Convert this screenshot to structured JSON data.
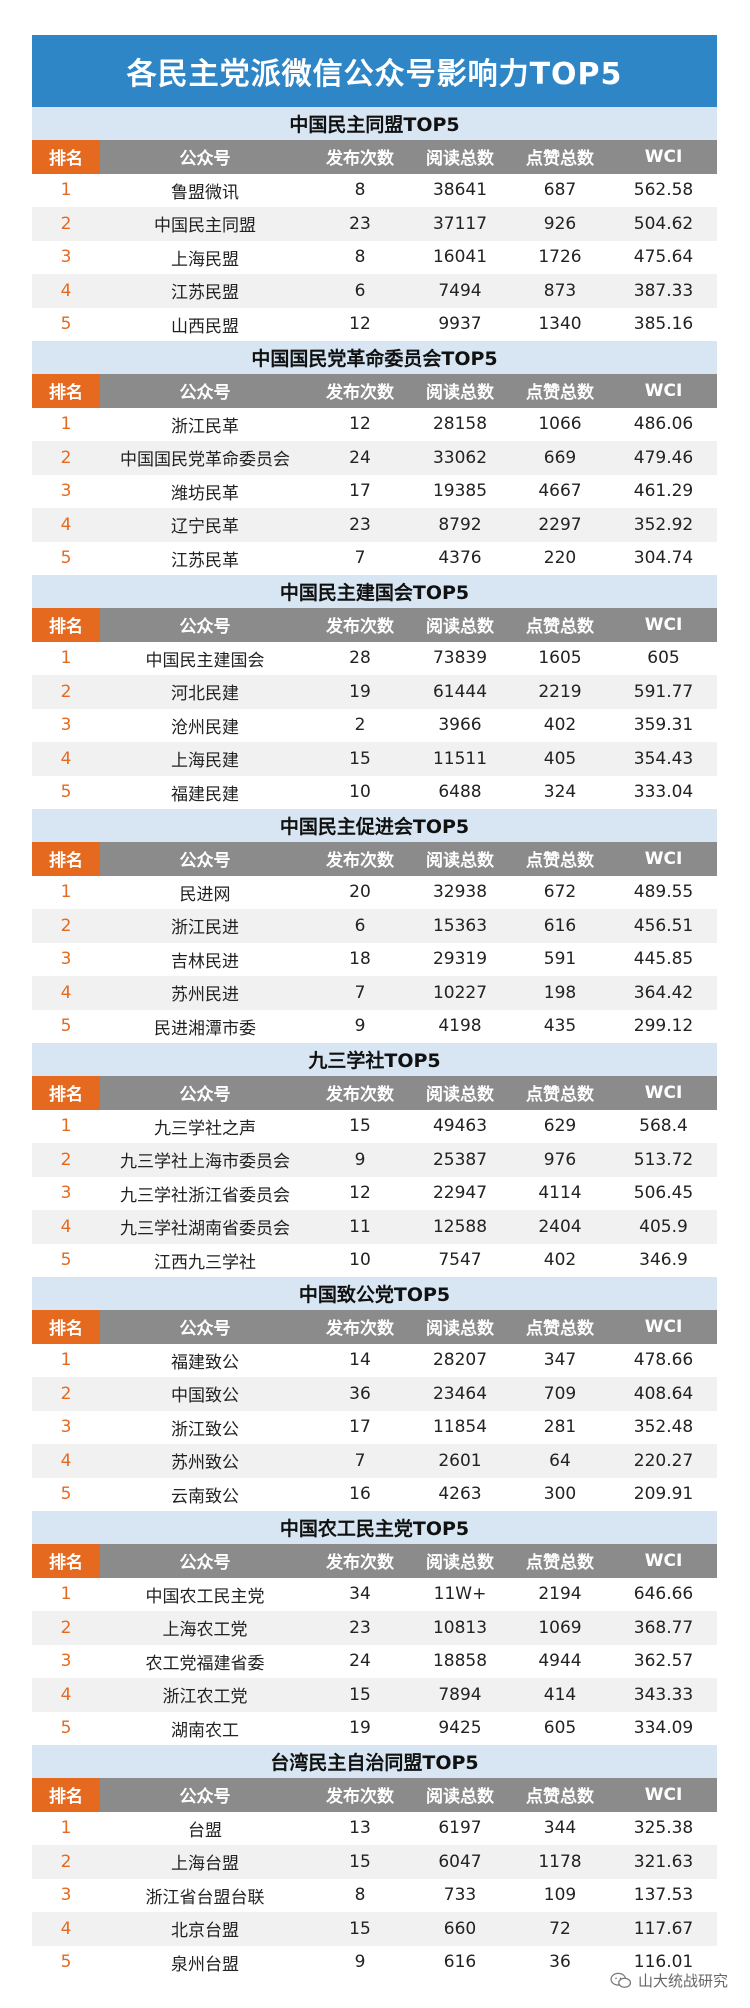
{
  "title": "各民主党派微信公众号影响力TOP5",
  "header": {
    "rank": "排名",
    "account": "公众号",
    "posts": "发布次数",
    "reads": "阅读总数",
    "likes": "点赞总数",
    "wci": "WCI"
  },
  "sections": [
    {
      "title": "中国民主同盟TOP5",
      "rows": [
        [
          "1",
          "鲁盟微讯",
          "8",
          "38641",
          "687",
          "562.58"
        ],
        [
          "2",
          "中国民主同盟",
          "23",
          "37117",
          "926",
          "504.62"
        ],
        [
          "3",
          "上海民盟",
          "8",
          "16041",
          "1726",
          "475.64"
        ],
        [
          "4",
          "江苏民盟",
          "6",
          "7494",
          "873",
          "387.33"
        ],
        [
          "5",
          "山西民盟",
          "12",
          "9937",
          "1340",
          "385.16"
        ]
      ]
    },
    {
      "title": "中国国民党革命委员会TOP5",
      "rows": [
        [
          "1",
          "浙江民革",
          "12",
          "28158",
          "1066",
          "486.06"
        ],
        [
          "2",
          "中国国民党革命委员会",
          "24",
          "33062",
          "669",
          "479.46"
        ],
        [
          "3",
          "潍坊民革",
          "17",
          "19385",
          "4667",
          "461.29"
        ],
        [
          "4",
          "辽宁民革",
          "23",
          "8792",
          "2297",
          "352.92"
        ],
        [
          "5",
          "江苏民革",
          "7",
          "4376",
          "220",
          "304.74"
        ]
      ]
    },
    {
      "title": "中国民主建国会TOP5",
      "rows": [
        [
          "1",
          "中国民主建国会",
          "28",
          "73839",
          "1605",
          "605"
        ],
        [
          "2",
          "河北民建",
          "19",
          "61444",
          "2219",
          "591.77"
        ],
        [
          "3",
          "沧州民建",
          "2",
          "3966",
          "402",
          "359.31"
        ],
        [
          "4",
          "上海民建",
          "15",
          "11511",
          "405",
          "354.43"
        ],
        [
          "5",
          "福建民建",
          "10",
          "6488",
          "324",
          "333.04"
        ]
      ]
    },
    {
      "title": "中国民主促进会TOP5",
      "rows": [
        [
          "1",
          "民进网",
          "20",
          "32938",
          "672",
          "489.55"
        ],
        [
          "2",
          "浙江民进",
          "6",
          "15363",
          "616",
          "456.51"
        ],
        [
          "3",
          "吉林民进",
          "18",
          "29319",
          "591",
          "445.85"
        ],
        [
          "4",
          "苏州民进",
          "7",
          "10227",
          "198",
          "364.42"
        ],
        [
          "5",
          "民进湘潭市委",
          "9",
          "4198",
          "435",
          "299.12"
        ]
      ]
    },
    {
      "title": "九三学社TOP5",
      "rows": [
        [
          "1",
          "九三学社之声",
          "15",
          "49463",
          "629",
          "568.4"
        ],
        [
          "2",
          "九三学社上海市委员会",
          "9",
          "25387",
          "976",
          "513.72"
        ],
        [
          "3",
          "九三学社浙江省委员会",
          "12",
          "22947",
          "4114",
          "506.45"
        ],
        [
          "4",
          "九三学社湖南省委员会",
          "11",
          "12588",
          "2404",
          "405.9"
        ],
        [
          "5",
          "江西九三学社",
          "10",
          "7547",
          "402",
          "346.9"
        ]
      ]
    },
    {
      "title": "中国致公党TOP5",
      "rows": [
        [
          "1",
          "福建致公",
          "14",
          "28207",
          "347",
          "478.66"
        ],
        [
          "2",
          "中国致公",
          "36",
          "23464",
          "709",
          "408.64"
        ],
        [
          "3",
          "浙江致公",
          "17",
          "11854",
          "281",
          "352.48"
        ],
        [
          "4",
          "苏州致公",
          "7",
          "2601",
          "64",
          "220.27"
        ],
        [
          "5",
          "云南致公",
          "16",
          "4263",
          "300",
          "209.91"
        ]
      ]
    },
    {
      "title": "中国农工民主党TOP5",
      "rows": [
        [
          "1",
          "中国农工民主党",
          "34",
          "11W+",
          "2194",
          "646.66"
        ],
        [
          "2",
          "上海农工党",
          "23",
          "10813",
          "1069",
          "368.77"
        ],
        [
          "3",
          "农工党福建省委",
          "24",
          "18858",
          "4944",
          "362.57"
        ],
        [
          "4",
          "浙江农工党",
          "15",
          "7894",
          "414",
          "343.33"
        ],
        [
          "5",
          "湖南农工",
          "19",
          "9425",
          "605",
          "334.09"
        ]
      ]
    },
    {
      "title": "台湾民主自治同盟TOP5",
      "rows": [
        [
          "1",
          "台盟",
          "13",
          "6197",
          "344",
          "325.38"
        ],
        [
          "2",
          "上海台盟",
          "15",
          "6047",
          "1178",
          "321.63"
        ],
        [
          "3",
          "浙江省台盟台联",
          "8",
          "733",
          "109",
          "137.53"
        ],
        [
          "4",
          "北京台盟",
          "15",
          "660",
          "72",
          "117.67"
        ],
        [
          "5",
          "泉州台盟",
          "9",
          "616",
          "36",
          "116.01"
        ]
      ]
    }
  ],
  "watermark": "山大统战研究",
  "colors": {
    "banner": "#2f86c7",
    "section": "#d7e6f2",
    "header": "#8b8b8b",
    "rank_accent": "#e56a1f"
  }
}
